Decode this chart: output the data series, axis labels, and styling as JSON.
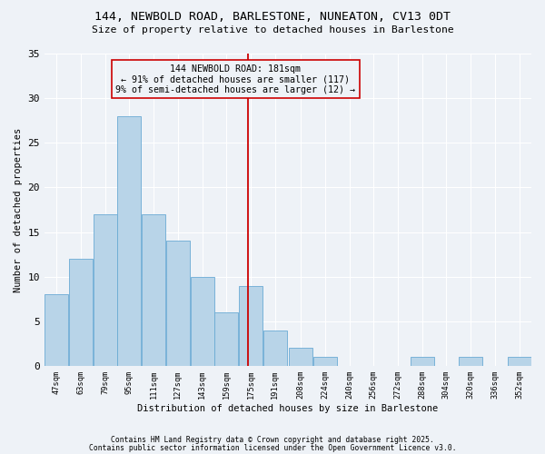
{
  "title1": "144, NEWBOLD ROAD, BARLESTONE, NUNEATON, CV13 0DT",
  "title2": "Size of property relative to detached houses in Barlestone",
  "xlabel": "Distribution of detached houses by size in Barlestone",
  "ylabel": "Number of detached properties",
  "bar_edges": [
    47,
    63,
    79,
    95,
    111,
    127,
    143,
    159,
    175,
    191,
    208,
    224,
    240,
    256,
    272,
    288,
    304,
    320,
    336,
    352,
    368
  ],
  "bar_labels": [
    "47sqm",
    "63sqm",
    "79sqm",
    "95sqm",
    "111sqm",
    "127sqm",
    "143sqm",
    "159sqm",
    "175sqm",
    "191sqm",
    "208sqm",
    "224sqm",
    "240sqm",
    "256sqm",
    "272sqm",
    "288sqm",
    "304sqm",
    "320sqm",
    "336sqm",
    "352sqm"
  ],
  "counts": [
    8,
    12,
    17,
    28,
    17,
    14,
    10,
    6,
    9,
    4,
    2,
    1,
    0,
    0,
    0,
    1,
    0,
    1,
    0,
    1
  ],
  "bar_color": "#b8d4e8",
  "bar_edgecolor": "#6aaad4",
  "vline_x": 181,
  "vline_color": "#cc0000",
  "annotation_text": "144 NEWBOLD ROAD: 181sqm\n← 91% of detached houses are smaller (117)\n9% of semi-detached houses are larger (12) →",
  "annotation_box_edgecolor": "#cc0000",
  "ylim": [
    0,
    35
  ],
  "yticks": [
    0,
    5,
    10,
    15,
    20,
    25,
    30,
    35
  ],
  "background_color": "#eef2f7",
  "grid_color": "#ffffff",
  "footnote1": "Contains HM Land Registry data © Crown copyright and database right 2025.",
  "footnote2": "Contains public sector information licensed under the Open Government Licence v3.0."
}
